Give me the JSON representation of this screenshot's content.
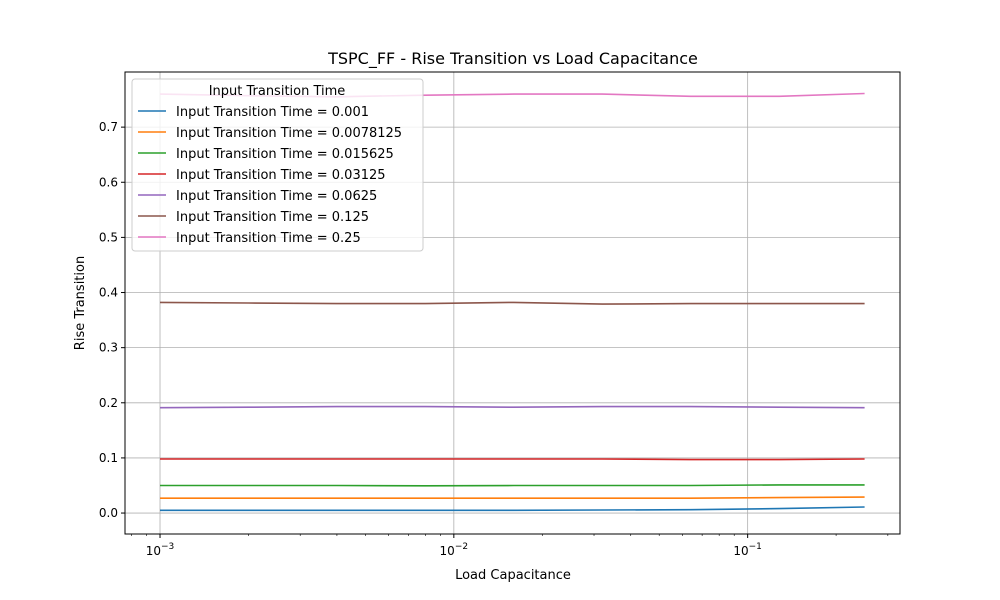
{
  "chart_data": {
    "type": "line",
    "title": "TSPC_FF - Rise Transition vs Load Capacitance",
    "xlabel": "Load Capacitance",
    "ylabel": "Rise Transition",
    "xscale": "log",
    "xlim": [
      0.00076,
      0.33
    ],
    "ylim": [
      -0.038,
      0.8
    ],
    "grid": true,
    "legend_title": "Input Transition Time",
    "legend_position": "upper-left",
    "x": [
      0.001,
      0.002,
      0.004,
      0.008,
      0.016,
      0.032,
      0.064,
      0.128,
      0.25
    ],
    "x_ticks": [
      0.001,
      0.01,
      0.1
    ],
    "x_tick_labels": [
      {
        "base": "10",
        "exp": "−3"
      },
      {
        "base": "10",
        "exp": "−2"
      },
      {
        "base": "10",
        "exp": "−1"
      }
    ],
    "y_ticks": [
      0.0,
      0.1,
      0.2,
      0.3,
      0.4,
      0.5,
      0.6,
      0.7
    ],
    "y_tick_labels": [
      "0.0",
      "0.1",
      "0.2",
      "0.3",
      "0.4",
      "0.5",
      "0.6",
      "0.7"
    ],
    "series": [
      {
        "name": "Input Transition Time = 0.001",
        "color": "#1f77b4",
        "values": [
          0.005,
          0.005,
          0.005,
          0.005,
          0.005,
          0.0055,
          0.006,
          0.008,
          0.011
        ]
      },
      {
        "name": "Input Transition Time = 0.0078125",
        "color": "#ff7f0e",
        "values": [
          0.027,
          0.027,
          0.027,
          0.027,
          0.027,
          0.027,
          0.027,
          0.028,
          0.029
        ]
      },
      {
        "name": "Input Transition Time = 0.015625",
        "color": "#2ca02c",
        "values": [
          0.05,
          0.05,
          0.05,
          0.0495,
          0.05,
          0.05,
          0.05,
          0.051,
          0.051
        ]
      },
      {
        "name": "Input Transition Time = 0.03125",
        "color": "#d62728",
        "values": [
          0.098,
          0.098,
          0.098,
          0.098,
          0.098,
          0.098,
          0.097,
          0.097,
          0.098
        ]
      },
      {
        "name": "Input Transition Time = 0.0625",
        "color": "#9467bd",
        "values": [
          0.191,
          0.192,
          0.193,
          0.193,
          0.192,
          0.193,
          0.193,
          0.192,
          0.191
        ]
      },
      {
        "name": "Input Transition Time = 0.125",
        "color": "#8c564b",
        "values": [
          0.382,
          0.381,
          0.38,
          0.38,
          0.382,
          0.379,
          0.38,
          0.38,
          0.38
        ]
      },
      {
        "name": "Input Transition Time = 0.25",
        "color": "#e377c2",
        "values": [
          0.76,
          0.757,
          0.755,
          0.758,
          0.76,
          0.76,
          0.756,
          0.756,
          0.761
        ]
      }
    ]
  }
}
